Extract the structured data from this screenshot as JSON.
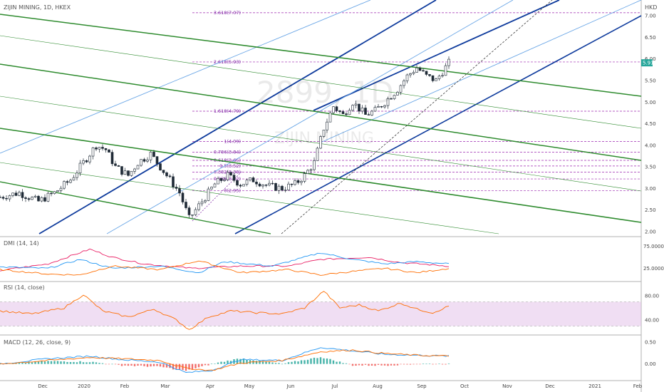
{
  "header": {
    "symbol": "ZIJIN MINING, 1D, HKEX",
    "currency": "HKD",
    "watermark_ticker": "2899, 1D",
    "watermark_name": "ZIJIN MINING"
  },
  "colors": {
    "up": "#26a69a",
    "down": "#ef5350",
    "candle": "#1f2a36",
    "pitchfork_blue": "#0d3a9c",
    "pitchfork_light_blue": "#6aa6e6",
    "pitchfork_green": "#2e8b2e",
    "fib": "#9c27b0",
    "price_label": "#26a69a",
    "dmi_plus": "#2196f3",
    "dmi_minus": "#ff6d00",
    "adx": "#e91e63",
    "rsi": "#ff6d00",
    "rsi_band": "#e1bee7",
    "macd": "#2196f3",
    "signal": "#ff6d00"
  },
  "chart_data": [
    {
      "type": "candlestick",
      "title": "ZIJIN MINING, 1D, HKEX",
      "ylabel": "HKD",
      "ylim": [
        1.95,
        7.2
      ],
      "yticks": [
        "7.00",
        "6.50",
        "6.00",
        "5.50",
        "5.00",
        "4.50",
        "4.00",
        "3.50",
        "3.00",
        "2.50",
        "2.00"
      ],
      "last_price": "5.91",
      "x_ticks": [
        "Dec",
        "2020",
        "Feb",
        "Mar",
        "Apr",
        "May",
        "Jun",
        "Jul",
        "Aug",
        "Sep",
        "Oct",
        "Nov",
        "Dec",
        "2021",
        "Feb"
      ],
      "price_path": [
        [
          0,
          2.8
        ],
        [
          6,
          2.9
        ],
        [
          12,
          2.7
        ],
        [
          17,
          2.9
        ],
        [
          22,
          3.2
        ],
        [
          26,
          3.6
        ],
        [
          30,
          4.0
        ],
        [
          33,
          3.9
        ],
        [
          36,
          3.5
        ],
        [
          40,
          3.3
        ],
        [
          43,
          3.6
        ],
        [
          47,
          3.8
        ],
        [
          50,
          3.5
        ],
        [
          53,
          3.2
        ],
        [
          56,
          2.9
        ],
        [
          59,
          2.3
        ],
        [
          61,
          2.5
        ],
        [
          64,
          2.8
        ],
        [
          67,
          3.1
        ],
        [
          71,
          3.3
        ],
        [
          75,
          3.1
        ],
        [
          79,
          3.2
        ],
        [
          84,
          3.05
        ],
        [
          88,
          3.0
        ],
        [
          92,
          3.1
        ],
        [
          95,
          3.3
        ],
        [
          98,
          3.6
        ],
        [
          101,
          4.4
        ],
        [
          104,
          4.9
        ],
        [
          107,
          4.7
        ],
        [
          110,
          5.0
        ],
        [
          114,
          4.7
        ],
        [
          117,
          4.8
        ],
        [
          120,
          5.0
        ],
        [
          124,
          5.3
        ],
        [
          127,
          5.6
        ],
        [
          130,
          5.8
        ],
        [
          133,
          5.6
        ],
        [
          136,
          5.5
        ],
        [
          140,
          5.91
        ]
      ],
      "fib_levels": [
        {
          "ratio": "0",
          "price": 2.95,
          "label": "0(2.95)"
        },
        {
          "ratio": "0.236",
          "price": 3.22,
          "label": "0.236(3.22)"
        },
        {
          "ratio": "0.382",
          "price": 3.38,
          "label": "0.382(3.38)"
        },
        {
          "ratio": "0.5",
          "price": 3.52,
          "label": "0.5(3.52)"
        },
        {
          "ratio": "0.618",
          "price": 3.65,
          "label": "0.618(3.65)"
        },
        {
          "ratio": "0.786",
          "price": 3.84,
          "label": "0.786(3.84)"
        },
        {
          "ratio": "1",
          "price": 4.09,
          "label": "1(4.09)"
        },
        {
          "ratio": "1.618",
          "price": 4.79,
          "label": "1.618(4.79)"
        },
        {
          "ratio": "2.618",
          "price": 5.93,
          "label": "2.618(5.93)"
        },
        {
          "ratio": "3.618",
          "price": 7.07,
          "label": "3.618(7.07)"
        }
      ]
    },
    {
      "type": "line",
      "title": "DMI (14, 14)",
      "ylim": [
        0,
        90
      ],
      "yticks": [
        "75.0000",
        "25.0000"
      ],
      "series": [
        {
          "key": "adx",
          "values": [
            [
              0,
              20
            ],
            [
              15,
              35
            ],
            [
              28,
              68
            ],
            [
              35,
              50
            ],
            [
              45,
              35
            ],
            [
              60,
              25
            ],
            [
              75,
              30
            ],
            [
              90,
              30
            ],
            [
              100,
              45
            ],
            [
              115,
              50
            ],
            [
              125,
              38
            ],
            [
              140,
              30
            ]
          ]
        },
        {
          "key": "dmi_plus",
          "values": [
            [
              0,
              28
            ],
            [
              15,
              25
            ],
            [
              25,
              45
            ],
            [
              35,
              25
            ],
            [
              50,
              30
            ],
            [
              62,
              15
            ],
            [
              70,
              40
            ],
            [
              85,
              30
            ],
            [
              100,
              60
            ],
            [
              110,
              45
            ],
            [
              120,
              35
            ],
            [
              130,
              40
            ],
            [
              140,
              35
            ]
          ]
        },
        {
          "key": "dmi_minus",
          "values": [
            [
              0,
              22
            ],
            [
              15,
              12
            ],
            [
              25,
              10
            ],
            [
              35,
              30
            ],
            [
              50,
              22
            ],
            [
              62,
              42
            ],
            [
              75,
              15
            ],
            [
              90,
              22
            ],
            [
              100,
              10
            ],
            [
              110,
              18
            ],
            [
              120,
              25
            ],
            [
              130,
              15
            ],
            [
              140,
              25
            ]
          ]
        }
      ]
    },
    {
      "type": "line",
      "title": "RSI (14, close)",
      "ylim": [
        20,
        100
      ],
      "yticks": [
        "80.00",
        "40.00"
      ],
      "band": [
        30,
        70
      ],
      "series": [
        {
          "key": "rsi",
          "values": [
            [
              0,
              55
            ],
            [
              10,
              50
            ],
            [
              20,
              60
            ],
            [
              26,
              82
            ],
            [
              32,
              55
            ],
            [
              40,
              45
            ],
            [
              48,
              58
            ],
            [
              55,
              40
            ],
            [
              59,
              24
            ],
            [
              65,
              45
            ],
            [
              72,
              55
            ],
            [
              80,
              52
            ],
            [
              88,
              50
            ],
            [
              95,
              60
            ],
            [
              101,
              88
            ],
            [
              106,
              60
            ],
            [
              112,
              65
            ],
            [
              118,
              55
            ],
            [
              125,
              68
            ],
            [
              130,
              58
            ],
            [
              135,
              52
            ],
            [
              140,
              63
            ]
          ]
        }
      ]
    },
    {
      "type": "line",
      "title": "MACD (12, 26, close, 9)",
      "ylim": [
        -0.35,
        0.6
      ],
      "yticks": [
        "0.50",
        "0.00"
      ],
      "series": [
        {
          "key": "macd",
          "values": [
            [
              0,
              0
            ],
            [
              15,
              0.12
            ],
            [
              28,
              0.18
            ],
            [
              38,
              0.1
            ],
            [
              50,
              0.04
            ],
            [
              58,
              -0.2
            ],
            [
              66,
              -0.15
            ],
            [
              75,
              0.1
            ],
            [
              88,
              0.08
            ],
            [
              100,
              0.38
            ],
            [
              110,
              0.3
            ],
            [
              120,
              0.22
            ],
            [
              130,
              0.2
            ],
            [
              140,
              0.18
            ]
          ]
        },
        {
          "key": "signal",
          "values": [
            [
              0,
              0
            ],
            [
              15,
              0.08
            ],
            [
              28,
              0.15
            ],
            [
              38,
              0.12
            ],
            [
              50,
              0.08
            ],
            [
              58,
              -0.1
            ],
            [
              66,
              -0.15
            ],
            [
              75,
              0.02
            ],
            [
              88,
              0.08
            ],
            [
              100,
              0.28
            ],
            [
              110,
              0.32
            ],
            [
              120,
              0.24
            ],
            [
              130,
              0.2
            ],
            [
              140,
              0.18
            ]
          ]
        }
      ]
    }
  ]
}
